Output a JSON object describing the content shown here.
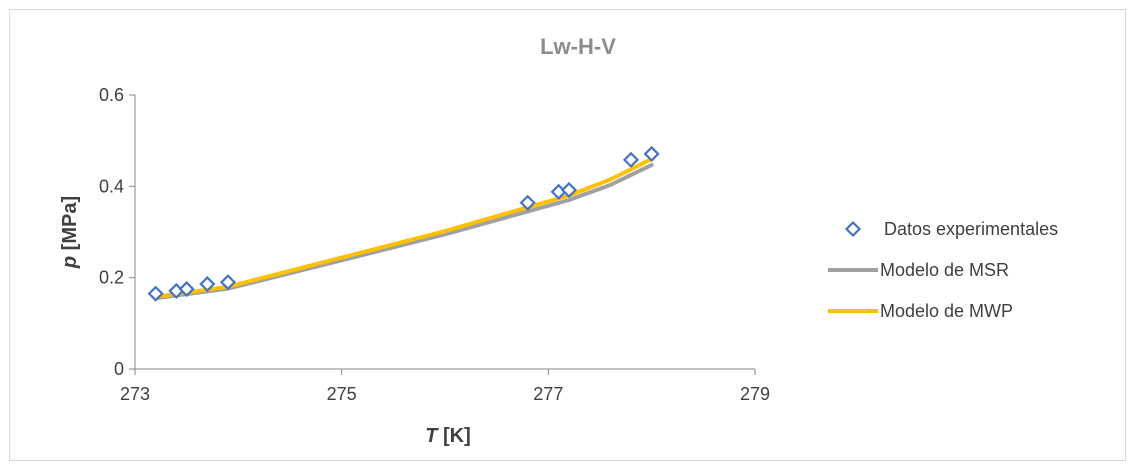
{
  "chart_data": {
    "type": "scatter",
    "title": "Lw-H-V",
    "xlabel_var": "T",
    "xlabel_unit": " [K]",
    "ylabel_var": "p",
    "ylabel_unit": " [MPa]",
    "xlim": [
      273,
      279
    ],
    "ylim": [
      0,
      0.6
    ],
    "x_ticks": [
      "273",
      "275",
      "277",
      "279"
    ],
    "x_tick_values": [
      273,
      275,
      277,
      279
    ],
    "y_ticks": [
      "0",
      "0.2",
      "0.4",
      "0.6"
    ],
    "y_tick_values": [
      0,
      0.2,
      0.4,
      0.6
    ],
    "grid": false,
    "legend_position": "right",
    "series": [
      {
        "name": "Datos experimentales",
        "kind": "markers",
        "marker": "diamond",
        "color": "#4472C4",
        "x": [
          273.2,
          273.4,
          273.5,
          273.7,
          273.9,
          276.8,
          277.1,
          277.2,
          277.8,
          278.0
        ],
        "y": [
          0.165,
          0.171,
          0.175,
          0.186,
          0.19,
          0.364,
          0.388,
          0.392,
          0.458,
          0.471
        ]
      },
      {
        "name": "Modelo de MSR",
        "kind": "line",
        "color": "#A0A0A0",
        "x": [
          273.2,
          273.9,
          275.0,
          276.0,
          276.8,
          277.2,
          277.6,
          278.0
        ],
        "y": [
          0.155,
          0.176,
          0.238,
          0.295,
          0.345,
          0.37,
          0.403,
          0.447
        ]
      },
      {
        "name": "Modelo de MWP",
        "kind": "line",
        "color": "#FFC000",
        "x": [
          273.2,
          273.9,
          275.0,
          276.0,
          276.8,
          277.2,
          277.6,
          278.0
        ],
        "y": [
          0.158,
          0.18,
          0.244,
          0.302,
          0.354,
          0.38,
          0.415,
          0.46
        ]
      }
    ]
  }
}
